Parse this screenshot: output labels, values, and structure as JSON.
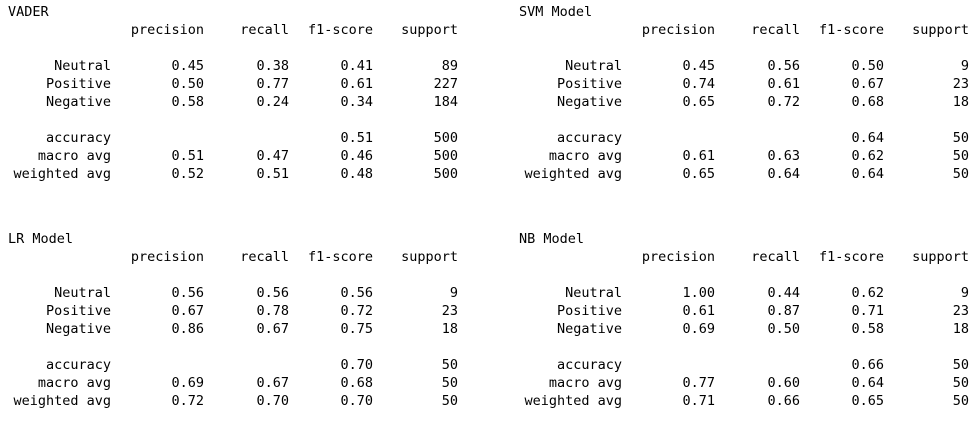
{
  "reports": [
    {
      "title": "VADER",
      "headers": [
        "precision",
        "recall",
        "f1-score",
        "support"
      ],
      "classes": [
        {
          "label": "Neutral",
          "precision": "0.45",
          "recall": "0.38",
          "f1": "0.41",
          "support": "89"
        },
        {
          "label": "Positive",
          "precision": "0.50",
          "recall": "0.77",
          "f1": "0.61",
          "support": "227"
        },
        {
          "label": "Negative",
          "precision": "0.58",
          "recall": "0.24",
          "f1": "0.34",
          "support": "184"
        }
      ],
      "summary": [
        {
          "label": "accuracy",
          "precision": "",
          "recall": "",
          "f1": "0.51",
          "support": "500"
        },
        {
          "label": "macro avg",
          "precision": "0.51",
          "recall": "0.47",
          "f1": "0.46",
          "support": "500"
        },
        {
          "label": "weighted avg",
          "precision": "0.52",
          "recall": "0.51",
          "f1": "0.48",
          "support": "500"
        }
      ]
    },
    {
      "title": "SVM Model",
      "headers": [
        "precision",
        "recall",
        "f1-score",
        "support"
      ],
      "classes": [
        {
          "label": "Neutral",
          "precision": "0.45",
          "recall": "0.56",
          "f1": "0.50",
          "support": "9"
        },
        {
          "label": "Positive",
          "precision": "0.74",
          "recall": "0.61",
          "f1": "0.67",
          "support": "23"
        },
        {
          "label": "Negative",
          "precision": "0.65",
          "recall": "0.72",
          "f1": "0.68",
          "support": "18"
        }
      ],
      "summary": [
        {
          "label": "accuracy",
          "precision": "",
          "recall": "",
          "f1": "0.64",
          "support": "50"
        },
        {
          "label": "macro avg",
          "precision": "0.61",
          "recall": "0.63",
          "f1": "0.62",
          "support": "50"
        },
        {
          "label": "weighted avg",
          "precision": "0.65",
          "recall": "0.64",
          "f1": "0.64",
          "support": "50"
        }
      ]
    },
    {
      "title": "LR Model",
      "headers": [
        "precision",
        "recall",
        "f1-score",
        "support"
      ],
      "classes": [
        {
          "label": "Neutral",
          "precision": "0.56",
          "recall": "0.56",
          "f1": "0.56",
          "support": "9"
        },
        {
          "label": "Positive",
          "precision": "0.67",
          "recall": "0.78",
          "f1": "0.72",
          "support": "23"
        },
        {
          "label": "Negative",
          "precision": "0.86",
          "recall": "0.67",
          "f1": "0.75",
          "support": "18"
        }
      ],
      "summary": [
        {
          "label": "accuracy",
          "precision": "",
          "recall": "",
          "f1": "0.70",
          "support": "50"
        },
        {
          "label": "macro avg",
          "precision": "0.69",
          "recall": "0.67",
          "f1": "0.68",
          "support": "50"
        },
        {
          "label": "weighted avg",
          "precision": "0.72",
          "recall": "0.70",
          "f1": "0.70",
          "support": "50"
        }
      ]
    },
    {
      "title": "NB Model",
      "headers": [
        "precision",
        "recall",
        "f1-score",
        "support"
      ],
      "classes": [
        {
          "label": "Neutral",
          "precision": "1.00",
          "recall": "0.44",
          "f1": "0.62",
          "support": "9"
        },
        {
          "label": "Positive",
          "precision": "0.61",
          "recall": "0.87",
          "f1": "0.71",
          "support": "23"
        },
        {
          "label": "Negative",
          "precision": "0.69",
          "recall": "0.50",
          "f1": "0.58",
          "support": "18"
        }
      ],
      "summary": [
        {
          "label": "accuracy",
          "precision": "",
          "recall": "",
          "f1": "0.66",
          "support": "50"
        },
        {
          "label": "macro avg",
          "precision": "0.77",
          "recall": "0.60",
          "f1": "0.64",
          "support": "50"
        },
        {
          "label": "weighted avg",
          "precision": "0.71",
          "recall": "0.66",
          "f1": "0.65",
          "support": "50"
        }
      ]
    }
  ]
}
